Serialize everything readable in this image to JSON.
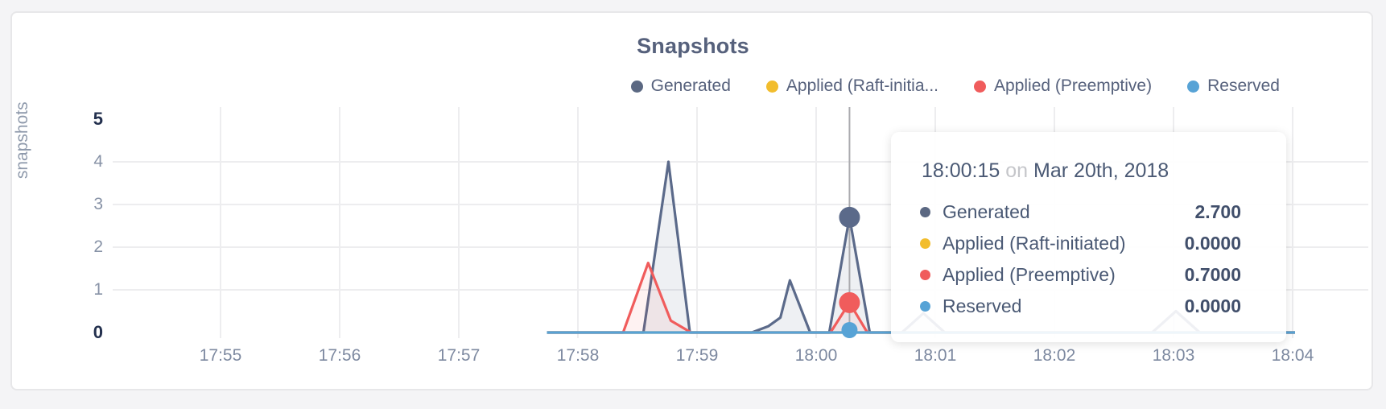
{
  "card": {
    "background": "#ffffff",
    "border_color": "#e7e7e9"
  },
  "colors": {
    "generated": "#5b6a8a",
    "raft_initiated": "#f2bd2d",
    "preemptive": "#f05c5c",
    "reserved": "#57a3d6",
    "grid": "#ededef",
    "highlight_line": "#ababaf",
    "title_text": "#56617c",
    "tick_text": "#8792a6",
    "tick_text_bold": "#23304e"
  },
  "chart_data": {
    "type": "area",
    "title": "Snapshots",
    "ylabel": "snapshots",
    "xlabel": "",
    "x_tick_labels": [
      "17:55",
      "17:56",
      "17:57",
      "17:58",
      "17:59",
      "18:00",
      "18:01",
      "18:02",
      "18:03",
      "18:04"
    ],
    "y_tick_labels": [
      "0",
      "1",
      "2",
      "3",
      "4",
      "5"
    ],
    "ylim": [
      0,
      5
    ],
    "grid": true,
    "legend_position": "top-right",
    "x_axis_note": "x values are minutes after 17:55, Mar 20th 2018",
    "series": [
      {
        "name": "Generated",
        "color": "#5b6a8a",
        "fill": "rgba(91,106,138,0.10)",
        "points": [
          [
            2.74,
            0
          ],
          [
            3.55,
            0
          ],
          [
            3.76,
            4.0
          ],
          [
            3.94,
            0
          ],
          [
            4.46,
            0
          ],
          [
            4.6,
            0.15
          ],
          [
            4.7,
            0.35
          ],
          [
            4.78,
            1.22
          ],
          [
            4.95,
            0
          ],
          [
            5.11,
            0
          ],
          [
            5.28,
            2.7
          ],
          [
            5.45,
            0
          ],
          [
            5.72,
            0
          ],
          [
            5.9,
            0.45
          ],
          [
            6.08,
            0
          ],
          [
            7.82,
            0
          ],
          [
            8.02,
            0.5
          ],
          [
            8.22,
            0
          ],
          [
            9.02,
            0
          ]
        ]
      },
      {
        "name": "Applied (Raft-initiated)",
        "color": "#f2bd2d",
        "fill": "none",
        "points": [
          [
            2.74,
            0
          ],
          [
            9.02,
            0
          ]
        ]
      },
      {
        "name": "Applied (Preemptive)",
        "color": "#f05c5c",
        "fill": "rgba(240,92,92,0.08)",
        "points": [
          [
            2.74,
            0
          ],
          [
            3.38,
            0
          ],
          [
            3.59,
            1.63
          ],
          [
            3.78,
            0.28
          ],
          [
            3.95,
            0
          ],
          [
            5.12,
            0
          ],
          [
            5.28,
            0.7
          ],
          [
            5.43,
            0
          ],
          [
            9.02,
            0
          ]
        ]
      },
      {
        "name": "Reserved",
        "color": "#57a3d6",
        "fill": "none",
        "points": [
          [
            2.74,
            0
          ],
          [
            9.02,
            0
          ]
        ]
      }
    ],
    "legend": [
      {
        "label": "Generated",
        "color": "#5b6882"
      },
      {
        "label": "Applied (Raft-initia...",
        "color": "#f2bd2d"
      },
      {
        "label": "Applied (Preemptive)",
        "color": "#f05c5c"
      },
      {
        "label": "Reserved",
        "color": "#57a3d6"
      }
    ],
    "highlight": {
      "x": 5.28,
      "dots": [
        {
          "series": "Generated",
          "y": 2.7,
          "r": 13,
          "color": "#5b6a8a"
        },
        {
          "series": "Applied (Preemptive)",
          "y": 0.7,
          "r": 13,
          "color": "#f05c5c"
        },
        {
          "series": "Reserved",
          "y": 0,
          "r": 10,
          "color": "#57a3d6"
        }
      ]
    }
  },
  "tooltip": {
    "time": "18:00:15",
    "separator": "on",
    "date": "Mar 20th, 2018",
    "rows": [
      {
        "label": "Generated",
        "value": "2.700",
        "color": "#5b6882"
      },
      {
        "label": "Applied (Raft-initiated)",
        "value": "0.0000",
        "color": "#f2bd2d"
      },
      {
        "label": "Applied (Preemptive)",
        "value": "0.7000",
        "color": "#f05c5c"
      },
      {
        "label": "Reserved",
        "value": "0.0000",
        "color": "#57a3d6"
      }
    ]
  }
}
